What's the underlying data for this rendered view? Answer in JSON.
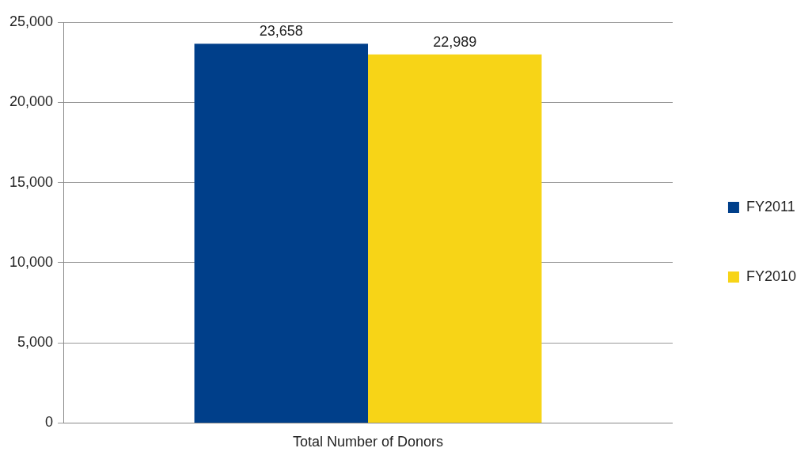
{
  "chart_data": {
    "type": "bar",
    "categories": [
      "Total Number of Donors"
    ],
    "series": [
      {
        "name": "FY2011",
        "color": "#003f8a",
        "values": [
          23658
        ],
        "value_labels": [
          "23,658"
        ]
      },
      {
        "name": "FY2010",
        "color": "#f7d417",
        "values": [
          22989
        ],
        "value_labels": [
          "22,989"
        ]
      }
    ],
    "ylim": [
      0,
      25000
    ],
    "yticks": [
      0,
      {
        "value": 5000,
        "label": "5,000"
      },
      {
        "value": 10000,
        "label": "10,000"
      },
      {
        "value": 15000,
        "label": "15,000"
      },
      {
        "value": 20000,
        "label": "20,000"
      },
      {
        "value": 25000,
        "label": "25,000"
      }
    ],
    "grid": "y",
    "legend": "right"
  }
}
